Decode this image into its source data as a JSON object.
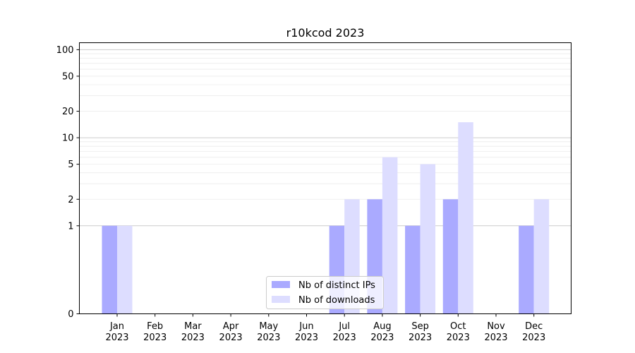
{
  "chart_data": {
    "type": "bar",
    "title": "r10kcod 2023",
    "xlabel": "",
    "ylabel": "",
    "categories": [
      [
        "Jan",
        "2023"
      ],
      [
        "Feb",
        "2023"
      ],
      [
        "Mar",
        "2023"
      ],
      [
        "Apr",
        "2023"
      ],
      [
        "May",
        "2023"
      ],
      [
        "Jun",
        "2023"
      ],
      [
        "Jul",
        "2023"
      ],
      [
        "Aug",
        "2023"
      ],
      [
        "Sep",
        "2023"
      ],
      [
        "Oct",
        "2023"
      ],
      [
        "Nov",
        "2023"
      ],
      [
        "Dec",
        "2023"
      ]
    ],
    "series": [
      {
        "name": "Nb of distinct IPs",
        "color": "#aaaaff",
        "values": [
          1,
          0,
          0,
          0,
          0,
          0,
          1,
          2,
          1,
          2,
          0,
          1
        ]
      },
      {
        "name": "Nb of downloads",
        "color": "#ddddff",
        "values": [
          1,
          0,
          0,
          0,
          0,
          0,
          2,
          6,
          5,
          15,
          0,
          2
        ]
      }
    ],
    "y_scale": "symlog",
    "y_ticks": [
      0,
      1,
      2,
      5,
      10,
      20,
      50,
      100
    ],
    "ylim": [
      0,
      120
    ],
    "grid": true,
    "legend_position": "bottom-center"
  }
}
